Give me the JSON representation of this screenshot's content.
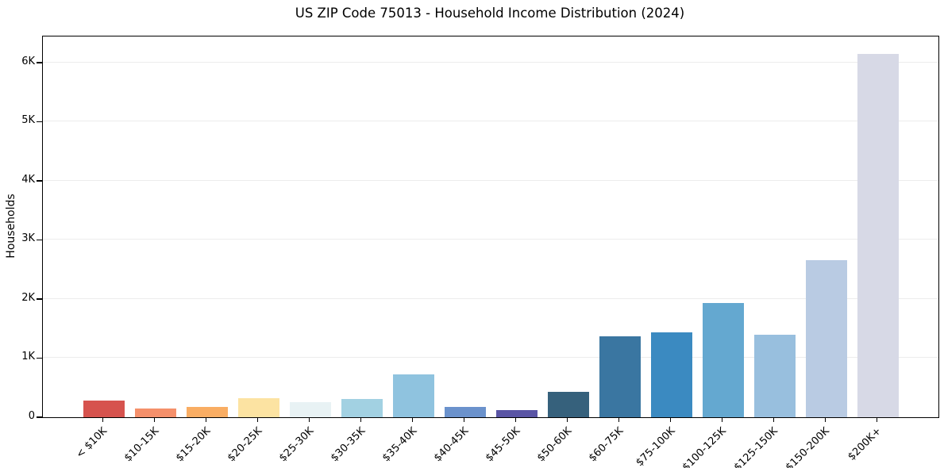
{
  "page": {
    "title": "US ZIP Code 75013 - Household Income Distribution (2024)"
  },
  "chart_data": {
    "type": "bar",
    "title": "US ZIP Code 75013 - Household Income Distribution (2024)",
    "xlabel": "",
    "ylabel": "Households",
    "categories": [
      "< $10K",
      "$10-15K",
      "$15-20K",
      "$20-25K",
      "$25-30K",
      "$30-35K",
      "$35-40K",
      "$40-45K",
      "$45-50K",
      "$50-60K",
      "$60-75K",
      "$75-100K",
      "$100-125K",
      "$125-150K",
      "$150-200K",
      "$200K+"
    ],
    "values": [
      280,
      150,
      180,
      320,
      260,
      310,
      730,
      175,
      120,
      430,
      1370,
      1440,
      1930,
      1390,
      2660,
      6140
    ],
    "bar_colors": [
      "#d6534e",
      "#f5906b",
      "#f9ad63",
      "#fce3a2",
      "#e8f2f4",
      "#a2d1e2",
      "#8fc3df",
      "#6b92cc",
      "#5a55a5",
      "#36617c",
      "#3a76a1",
      "#3b8ac1",
      "#64a8d0",
      "#98bfde",
      "#b9cbe3",
      "#d7d9e6"
    ],
    "ylim": [
      0,
      6440
    ],
    "yticks": [
      {
        "value": 0,
        "label": "0"
      },
      {
        "value": 1000,
        "label": "1K"
      },
      {
        "value": 2000,
        "label": "2K"
      },
      {
        "value": 3000,
        "label": "3K"
      },
      {
        "value": 4000,
        "label": "4K"
      },
      {
        "value": 5000,
        "label": "5K"
      },
      {
        "value": 6000,
        "label": "6K"
      }
    ],
    "grid": "horizontal",
    "legend": "none"
  },
  "colors": {
    "background": "#ffffff",
    "spine": "#000000",
    "gridline": "#ececec",
    "text": "#000000"
  }
}
